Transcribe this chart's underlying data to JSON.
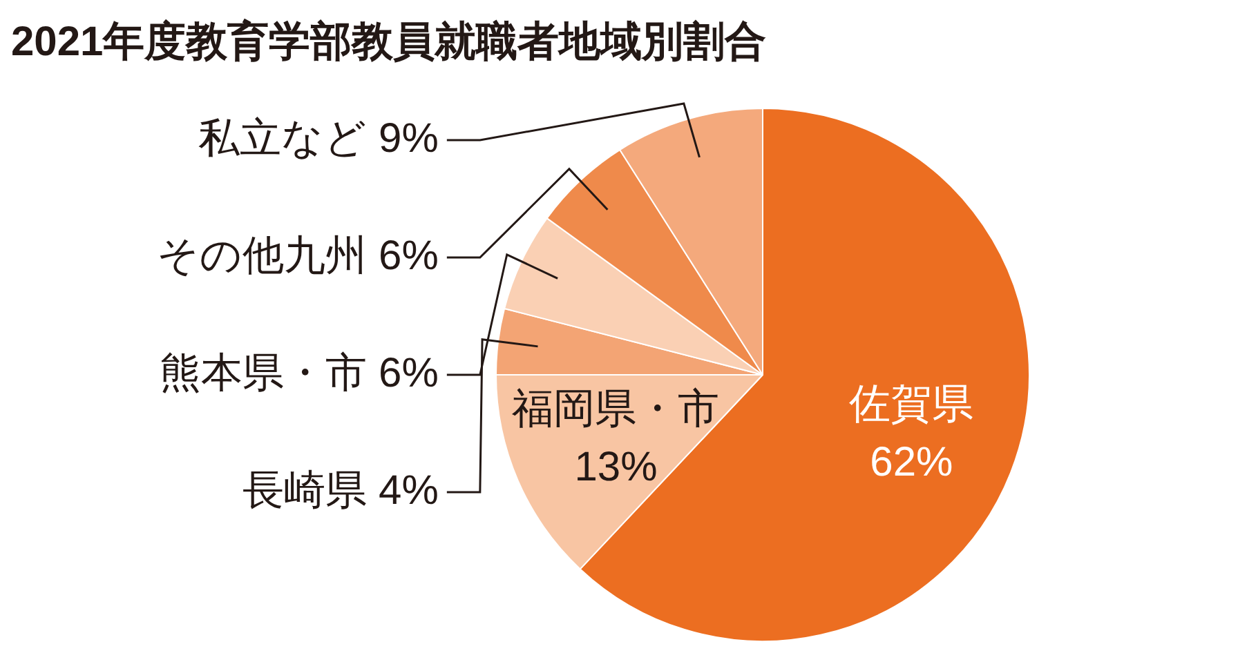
{
  "chart_data": {
    "type": "pie",
    "title": "2021年度教育学部教員就職者地域別割合",
    "categories": [
      "佐賀県",
      "福岡県・市",
      "長崎県",
      "熊本県・市",
      "その他九州",
      "私立など"
    ],
    "values": [
      62,
      13,
      4,
      6,
      6,
      9
    ],
    "value_labels": [
      "62%",
      "13%",
      "4%",
      "6%",
      "6%",
      "9%"
    ],
    "colors": [
      "#ec6e21",
      "#f8c5a3",
      "#f3a474",
      "#fad0b4",
      "#ef8a4b",
      "#f4a97c"
    ],
    "legend": false
  }
}
